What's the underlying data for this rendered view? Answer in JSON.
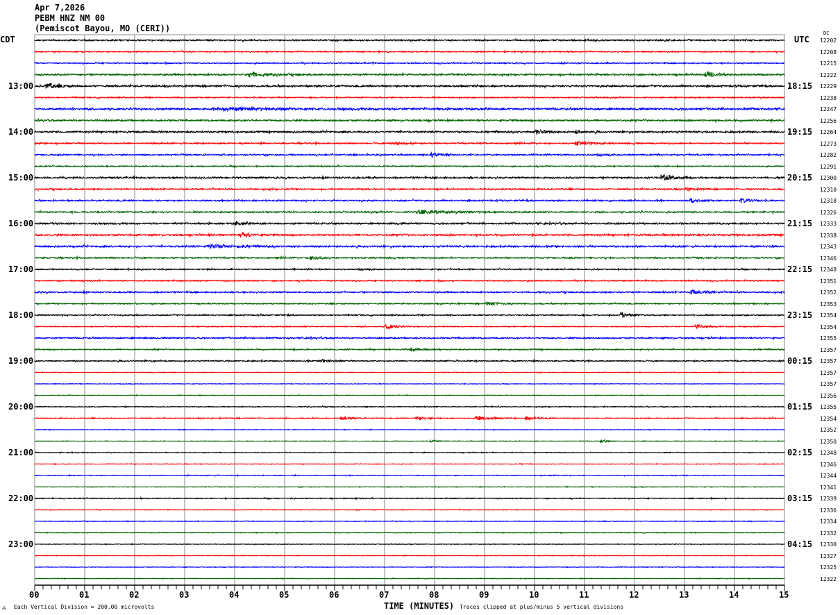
{
  "header": {
    "date": "Apr 7,2026",
    "station": "PEBM HNZ NM 00",
    "location": "(Pemiscot Bayou, MO (CERI))"
  },
  "left_tz": "CDT",
  "right_tz": "UTC",
  "dc_label": "DC",
  "footer": {
    "scale_note": "Each Vertical Division =  200.00 microvolts",
    "xlabel": "TIME (MINUTES)",
    "clip_note": "Traces clipped at plus/minus 5 vertical divisions"
  },
  "chart_data": {
    "type": "line",
    "title": "PEBM HNZ NM 00",
    "xlabel": "TIME (MINUTES)",
    "xlim": [
      0,
      15
    ],
    "x_ticks": [
      "00",
      "01",
      "02",
      "03",
      "04",
      "05",
      "06",
      "07",
      "08",
      "09",
      "10",
      "11",
      "12",
      "13",
      "14",
      "15"
    ],
    "grid": true,
    "trace_colors": [
      "#000000",
      "#ff0000",
      "#0000ff",
      "#006400"
    ],
    "left_labels": [
      "",
      "13:00",
      "14:00",
      "15:00",
      "16:00",
      "17:00",
      "18:00",
      "19:00",
      "20:00",
      "21:00",
      "22:00",
      "23:00"
    ],
    "right_labels": [
      "",
      "18:15",
      "19:15",
      "20:15",
      "21:15",
      "22:15",
      "23:15",
      "00:15",
      "01:15",
      "02:15",
      "03:15",
      "04:15"
    ],
    "dc_values": [
      "12202",
      "12208",
      "12215",
      "12222",
      "12229",
      "12238",
      "12247",
      "12256",
      "12264",
      "12273",
      "12282",
      "12291",
      "12300",
      "12310",
      "12318",
      "12326",
      "12333",
      "12338",
      "12343",
      "12346",
      "12348",
      "12351",
      "12352",
      "12353",
      "12354",
      "12354",
      "12355",
      "12357",
      "12357",
      "12357",
      "12357",
      "12356",
      "12355",
      "12354",
      "12352",
      "12350",
      "12348",
      "12346",
      "12344",
      "12341",
      "12339",
      "12336",
      "12334",
      "12332",
      "12330",
      "12327",
      "12325",
      "12322"
    ],
    "noise_levels": [
      0.25,
      0.2,
      0.2,
      0.3,
      0.3,
      0.2,
      0.35,
      0.3,
      0.3,
      0.25,
      0.25,
      0.2,
      0.3,
      0.25,
      0.25,
      0.25,
      0.3,
      0.3,
      0.3,
      0.25,
      0.2,
      0.2,
      0.25,
      0.2,
      0.2,
      0.15,
      0.25,
      0.2,
      0.2,
      0.1,
      0.1,
      0.1,
      0.15,
      0.15,
      0.1,
      0.1,
      0.12,
      0.1,
      0.12,
      0.1,
      0.15,
      0.1,
      0.1,
      0.1,
      0.1,
      0.1,
      0.1,
      0.1
    ],
    "events": [
      {
        "trace": 3,
        "minute": 4.2,
        "duration": 0.9,
        "amplitude": 1.0
      },
      {
        "trace": 3,
        "minute": 13.4,
        "duration": 0.3,
        "amplitude": 1.6
      },
      {
        "trace": 4,
        "minute": 0.2,
        "duration": 0.3,
        "amplitude": 1.6
      },
      {
        "trace": 6,
        "minute": 3.5,
        "duration": 4.5,
        "amplitude": 0.6
      },
      {
        "trace": 8,
        "minute": 10.0,
        "duration": 0.2,
        "amplitude": 1.4
      },
      {
        "trace": 8,
        "minute": 10.8,
        "duration": 0.3,
        "amplitude": 0.9
      },
      {
        "trace": 9,
        "minute": 7.1,
        "duration": 0.4,
        "amplitude": 0.8
      },
      {
        "trace": 9,
        "minute": 10.8,
        "duration": 0.4,
        "amplitude": 1.3
      },
      {
        "trace": 10,
        "minute": 7.9,
        "duration": 0.1,
        "amplitude": 1.4
      },
      {
        "trace": 12,
        "minute": 12.5,
        "duration": 0.4,
        "amplitude": 1.7
      },
      {
        "trace": 13,
        "minute": 13.0,
        "duration": 0.3,
        "amplitude": 0.8
      },
      {
        "trace": 14,
        "minute": 13.1,
        "duration": 0.2,
        "amplitude": 1.2
      },
      {
        "trace": 14,
        "minute": 14.1,
        "duration": 0.3,
        "amplitude": 1.1
      },
      {
        "trace": 15,
        "minute": 7.6,
        "duration": 1.4,
        "amplitude": 0.9
      },
      {
        "trace": 16,
        "minute": 4.0,
        "duration": 0.2,
        "amplitude": 0.8
      },
      {
        "trace": 17,
        "minute": 4.1,
        "duration": 0.3,
        "amplitude": 1.3
      },
      {
        "trace": 18,
        "minute": 3.4,
        "duration": 1.6,
        "amplitude": 0.9
      },
      {
        "trace": 19,
        "minute": 5.5,
        "duration": 0.2,
        "amplitude": 1.1
      },
      {
        "trace": 22,
        "minute": 13.1,
        "duration": 0.4,
        "amplitude": 1.2
      },
      {
        "trace": 23,
        "minute": 9.0,
        "duration": 0.4,
        "amplitude": 0.8
      },
      {
        "trace": 24,
        "minute": 11.7,
        "duration": 0.2,
        "amplitude": 1.5
      },
      {
        "trace": 25,
        "minute": 7.0,
        "duration": 0.3,
        "amplitude": 1.2
      },
      {
        "trace": 25,
        "minute": 13.2,
        "duration": 0.2,
        "amplitude": 1.1
      },
      {
        "trace": 27,
        "minute": 7.5,
        "duration": 0.2,
        "amplitude": 0.9
      },
      {
        "trace": 28,
        "minute": 5.7,
        "duration": 0.3,
        "amplitude": 1.0
      },
      {
        "trace": 33,
        "minute": 6.1,
        "duration": 0.3,
        "amplitude": 0.8
      },
      {
        "trace": 33,
        "minute": 7.6,
        "duration": 0.3,
        "amplitude": 0.8
      },
      {
        "trace": 33,
        "minute": 8.8,
        "duration": 0.4,
        "amplitude": 1.2
      },
      {
        "trace": 33,
        "minute": 9.8,
        "duration": 0.3,
        "amplitude": 0.9
      },
      {
        "trace": 35,
        "minute": 7.9,
        "duration": 0.05,
        "amplitude": 0.8
      },
      {
        "trace": 35,
        "minute": 11.3,
        "duration": 0.05,
        "amplitude": 0.8
      }
    ]
  }
}
